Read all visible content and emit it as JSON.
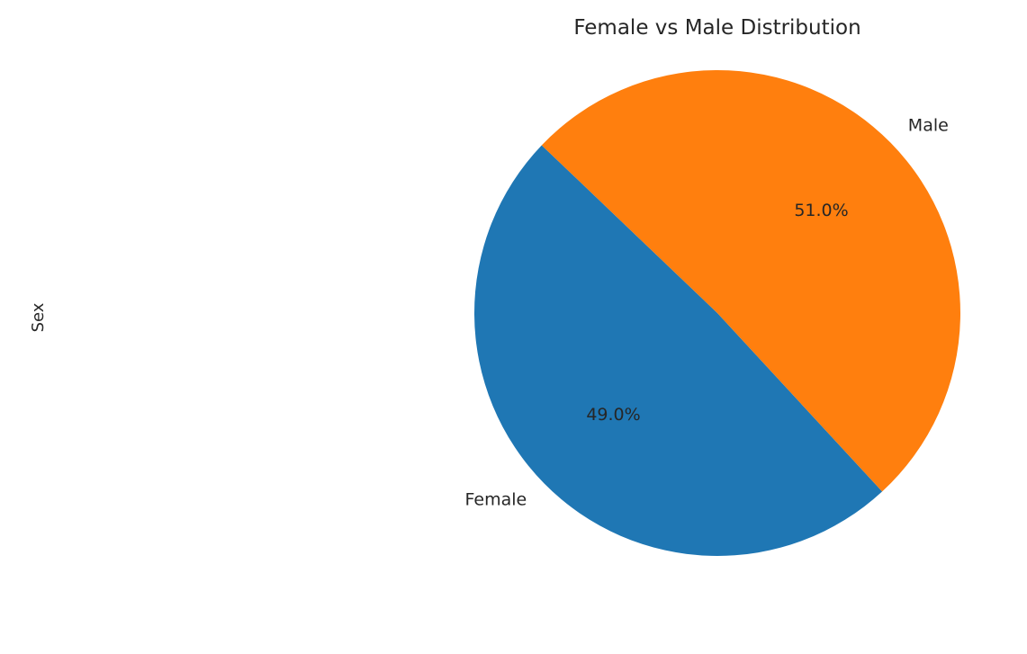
{
  "chart_data": {
    "type": "pie",
    "title": "Female vs Male Distribution",
    "ylabel": "Sex",
    "categories": [
      "Female",
      "Male"
    ],
    "values": [
      49.0,
      51.0
    ],
    "percent_labels": [
      "49.0%",
      "51.0%"
    ],
    "colors": [
      "#1f77b4",
      "#ff7f0e"
    ],
    "start_angle_deg": 136.3,
    "direction": "counterclockwise",
    "legend": "none"
  }
}
